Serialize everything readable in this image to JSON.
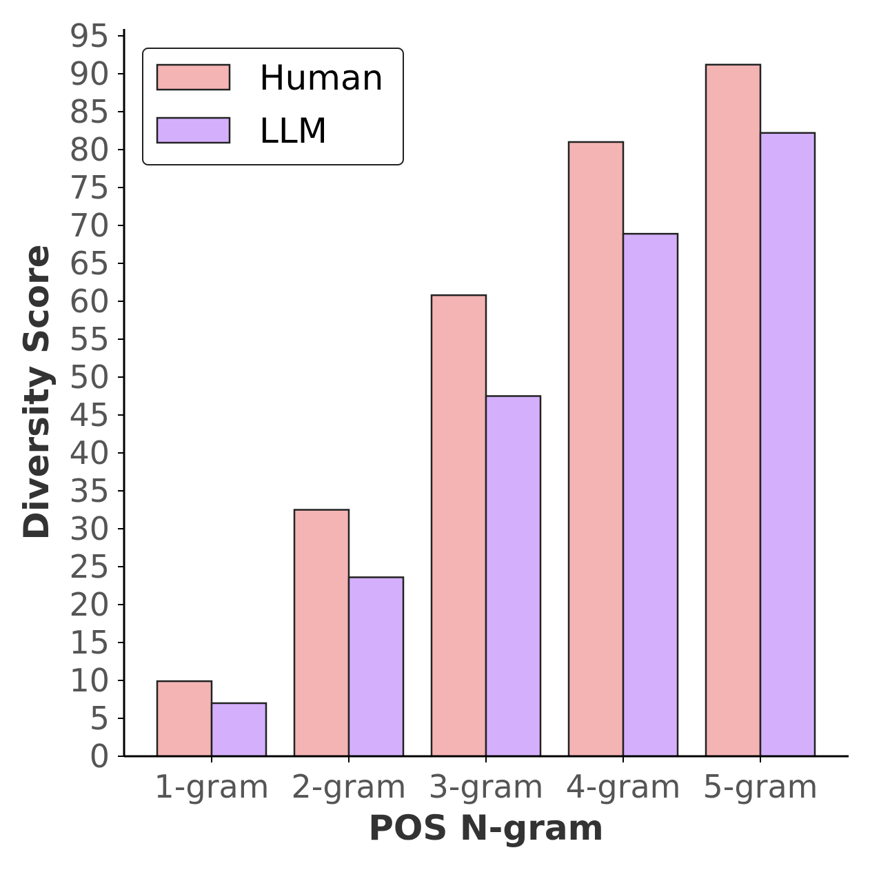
{
  "chart_data": {
    "type": "bar",
    "title": "",
    "xlabel": "POS N-gram",
    "ylabel": "Diversity Score",
    "categories": [
      "1-gram",
      "2-gram",
      "3-gram",
      "4-gram",
      "5-gram"
    ],
    "series": [
      {
        "name": "Human",
        "color": "#f4b4b4",
        "values": [
          9.9,
          32.5,
          60.8,
          81.0,
          91.2
        ]
      },
      {
        "name": "LLM",
        "color": "#d4b0fc",
        "values": [
          7.0,
          23.6,
          47.5,
          68.9,
          82.2
        ]
      }
    ],
    "ylim": [
      0,
      95
    ],
    "yticks": [
      "0",
      "5",
      "10",
      "15",
      "20",
      "25",
      "30",
      "35",
      "40",
      "45",
      "50",
      "55",
      "60",
      "65",
      "70",
      "75",
      "80",
      "85",
      "90",
      "95"
    ],
    "grid": false,
    "legend": "top-left"
  }
}
